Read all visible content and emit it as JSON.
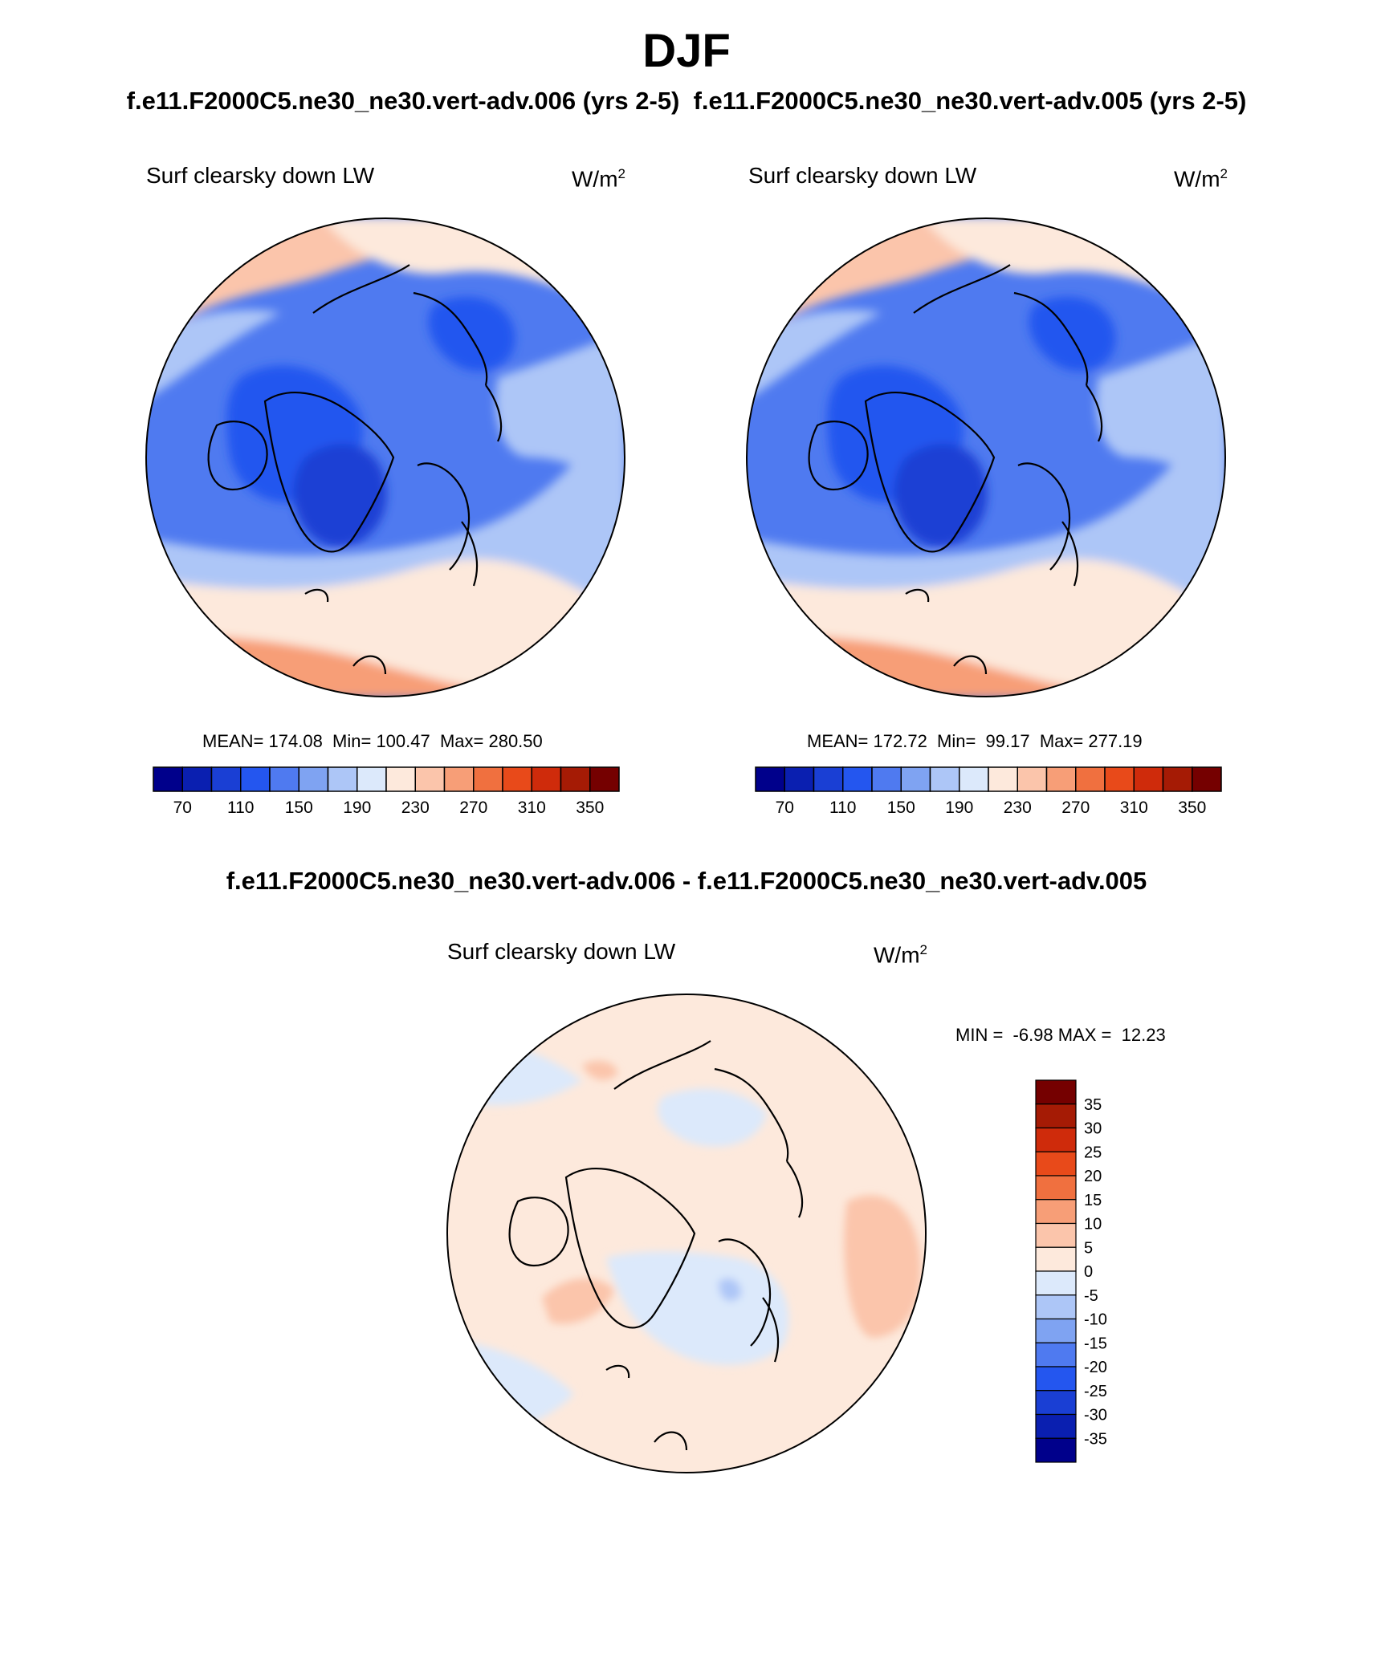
{
  "figure": {
    "title": "DJF",
    "subtitle": "f.e11.F2000C5.ne30_ne30.vert-adv.006 (yrs 2-5)  f.e11.F2000C5.ne30_ne30.vert-adv.005 (yrs 2-5)",
    "diff_title": "f.e11.F2000C5.ne30_ne30.vert-adv.006 - f.e11.F2000C5.ne30_ne30.vert-adv.005"
  },
  "colors": {
    "abs_scale": [
      "#00008b",
      "#0a1fb0",
      "#1a3fd4",
      "#2456ef",
      "#4f7af0",
      "#7fa3f2",
      "#adc6f7",
      "#dce9fb",
      "#fde9dc",
      "#fbc5ab",
      "#f79e77",
      "#f0703f",
      "#e84a1a",
      "#cf2b0b",
      "#a51b05",
      "#750000"
    ],
    "diff_scale": [
      "#00008b",
      "#0a1fb0",
      "#1a3fd4",
      "#2456ef",
      "#4f7af0",
      "#7fa3f2",
      "#adc6f7",
      "#dce9fb",
      "#fde9dc",
      "#fbc5ab",
      "#f79e77",
      "#f0703f",
      "#e84a1a",
      "#cf2b0b",
      "#a51b05",
      "#750000"
    ]
  },
  "chart_data": [
    {
      "type": "heatmap",
      "projection": "north-polar-stereographic",
      "label": "Surf clearsky down LW",
      "units_base": "W/m",
      "units_exp": "2",
      "stats_text": "MEAN= 174.08  Min= 100.47  Max= 280.50",
      "mean": 174.08,
      "min": 100.47,
      "max": 280.5,
      "colorbar": {
        "orientation": "horizontal",
        "levels": [
          70,
          90,
          110,
          130,
          150,
          170,
          190,
          210,
          230,
          250,
          270,
          290,
          310,
          330,
          350
        ],
        "tick_labels": [
          "70",
          "110",
          "150",
          "190",
          "230",
          "270",
          "310",
          "350"
        ]
      }
    },
    {
      "type": "heatmap",
      "projection": "north-polar-stereographic",
      "label": "Surf clearsky down LW",
      "units_base": "W/m",
      "units_exp": "2",
      "stats_text": "MEAN= 172.72  Min=  99.17  Max= 277.19",
      "mean": 172.72,
      "min": 99.17,
      "max": 277.19,
      "colorbar": {
        "orientation": "horizontal",
        "levels": [
          70,
          90,
          110,
          130,
          150,
          170,
          190,
          210,
          230,
          250,
          270,
          290,
          310,
          330,
          350
        ],
        "tick_labels": [
          "70",
          "110",
          "150",
          "190",
          "230",
          "270",
          "310",
          "350"
        ]
      }
    },
    {
      "type": "heatmap",
      "projection": "north-polar-stereographic",
      "label": "Surf clearsky down LW",
      "units_base": "W/m",
      "units_exp": "2",
      "stats_text": "MIN =  -6.98 MAX =  12.23",
      "min": -6.98,
      "max": 12.23,
      "colorbar": {
        "orientation": "vertical",
        "levels": [
          35,
          30,
          25,
          20,
          15,
          10,
          5,
          0,
          -5,
          -10,
          -15,
          -20,
          -25,
          -30,
          -35
        ],
        "tick_labels": [
          "35",
          "30",
          "25",
          "20",
          "15",
          "10",
          "5",
          "0",
          "-5",
          "-10",
          "-15",
          "-20",
          "-25",
          "-30",
          "-35"
        ]
      }
    }
  ]
}
